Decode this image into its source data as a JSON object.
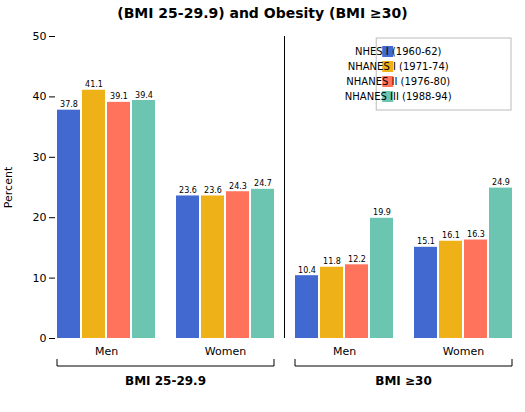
{
  "chart_data": {
    "type": "bar",
    "title": "(BMI 25-29.9) and Obesity (BMI ≥30)",
    "ylabel": "Percent",
    "categories": [
      "Men",
      "Women",
      "Men",
      "Women"
    ],
    "annotations": [
      "BMI 25-29.9",
      "BMI ≥30"
    ],
    "series": [
      {
        "name": "NHES I (1960-62)",
        "values": [
          37.8,
          23.6,
          10.4,
          15.1
        ]
      },
      {
        "name": "NHANES I (1971-74)",
        "values": [
          41.1,
          23.6,
          11.8,
          16.1
        ]
      },
      {
        "name": "NHANES II (1976-80)",
        "values": [
          39.1,
          24.3,
          12.2,
          16.3
        ]
      },
      {
        "name": "NHANES III (1988-94)",
        "values": [
          39.4,
          24.7,
          19.9,
          24.9
        ]
      }
    ],
    "ylim": [
      0,
      50
    ],
    "yticks": [
      0,
      10,
      20,
      30,
      40,
      50
    ],
    "legend": "upper right",
    "data_labels": true
  }
}
